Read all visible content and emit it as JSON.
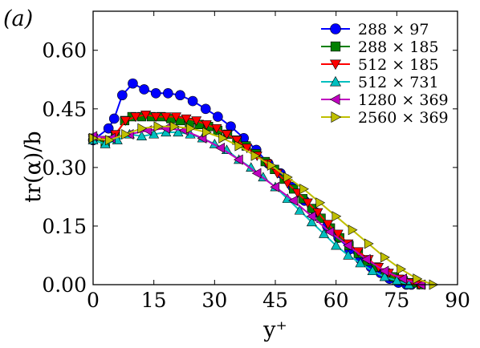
{
  "chart_data": {
    "type": "line",
    "panel_label": "(a)",
    "xlabel": "y⁺",
    "ylabel": "tr(α)/b",
    "xlim": [
      0,
      90
    ],
    "ylim": [
      0,
      0.7
    ],
    "xticks": [
      0,
      15,
      30,
      45,
      60,
      75,
      90
    ],
    "yticks": [
      0.0,
      0.15,
      0.3,
      0.45,
      0.6
    ],
    "xtick_labels": [
      "0",
      "15",
      "30",
      "45",
      "60",
      "75",
      "90"
    ],
    "ytick_labels": [
      "0.00",
      "0.15",
      "0.30",
      "0.45",
      "0.60"
    ],
    "grid": false,
    "legend_position": "top-right",
    "series": [
      {
        "name": "288 × 97",
        "color": "#0000ff",
        "marker": "circle",
        "x": [
          0,
          3.8,
          5.2,
          7.2,
          9.8,
          12.6,
          15.5,
          18.5,
          21.5,
          24.6,
          27.8,
          30.8,
          34,
          37.2,
          40.3,
          43.3,
          46.3,
          49.3,
          52.2,
          55,
          57.8,
          60.6,
          63.3,
          66,
          68.6,
          71,
          73.2,
          75.4,
          77.4,
          78.6
        ],
        "y": [
          0.37,
          0.4,
          0.425,
          0.485,
          0.515,
          0.5,
          0.49,
          0.49,
          0.485,
          0.47,
          0.45,
          0.43,
          0.405,
          0.375,
          0.345,
          0.31,
          0.285,
          0.25,
          0.215,
          0.185,
          0.15,
          0.12,
          0.09,
          0.065,
          0.045,
          0.03,
          0.015,
          0.005,
          0.0,
          0.0
        ]
      },
      {
        "name": "288 × 185",
        "color": "#008000",
        "marker": "square",
        "x": [
          0,
          3,
          5.5,
          7.8,
          9.6,
          12,
          14.4,
          16.8,
          19.2,
          21.5,
          23.8,
          26.2,
          28.5,
          30.8,
          33.2,
          35.5,
          37.8,
          40.2,
          42.5,
          44.8,
          47.2,
          49.5,
          51.8,
          54,
          56.3,
          58.6,
          60.9,
          63.2,
          65.5,
          67.7,
          69.9,
          72.2,
          74.4,
          76.6,
          78.8,
          81
        ],
        "y": [
          0.375,
          0.365,
          0.38,
          0.42,
          0.43,
          0.43,
          0.43,
          0.43,
          0.425,
          0.42,
          0.415,
          0.41,
          0.405,
          0.395,
          0.385,
          0.37,
          0.355,
          0.335,
          0.315,
          0.295,
          0.27,
          0.245,
          0.22,
          0.195,
          0.17,
          0.145,
          0.12,
          0.1,
          0.08,
          0.06,
          0.045,
          0.03,
          0.02,
          0.01,
          0.005,
          0.0
        ]
      },
      {
        "name": "512 × 185",
        "color": "#ff0000",
        "marker": "triangle-down",
        "x": [
          0,
          3,
          5.5,
          8,
          10.5,
          13,
          15.5,
          18,
          20.5,
          23,
          25.5,
          28,
          30.5,
          33,
          35.5,
          38,
          40.5,
          43,
          45.5,
          48,
          50.5,
          53,
          55.5,
          58,
          60.5,
          63,
          65.5,
          68,
          70.5,
          73,
          75.5,
          78,
          80.5
        ],
        "y": [
          0.375,
          0.37,
          0.385,
          0.42,
          0.43,
          0.435,
          0.43,
          0.43,
          0.43,
          0.425,
          0.42,
          0.41,
          0.4,
          0.385,
          0.37,
          0.35,
          0.33,
          0.31,
          0.285,
          0.26,
          0.235,
          0.21,
          0.185,
          0.155,
          0.13,
          0.105,
          0.085,
          0.065,
          0.045,
          0.03,
          0.015,
          0.005,
          0.0
        ]
      },
      {
        "name": "512 × 731",
        "color": "#00bfbf",
        "marker": "triangle-up",
        "x": [
          0,
          3,
          6,
          9,
          12,
          15,
          18,
          21,
          24,
          27,
          30,
          33,
          36,
          39,
          42,
          45,
          48,
          51,
          54,
          57,
          60,
          63,
          66,
          69,
          72,
          75,
          78
        ],
        "y": [
          0.37,
          0.36,
          0.37,
          0.385,
          0.38,
          0.385,
          0.39,
          0.39,
          0.385,
          0.375,
          0.36,
          0.345,
          0.32,
          0.3,
          0.275,
          0.25,
          0.22,
          0.19,
          0.16,
          0.13,
          0.1,
          0.075,
          0.055,
          0.035,
          0.02,
          0.01,
          0.0
        ]
      },
      {
        "name": "1280 × 369",
        "color": "#bf00bf",
        "marker": "triangle-left",
        "x": [
          0,
          4.5,
          9,
          13.5,
          18,
          22.5,
          27,
          31.5,
          36,
          40.5,
          45,
          49.5,
          54,
          58.5,
          63,
          67.5,
          72,
          76.5,
          81
        ],
        "y": [
          0.38,
          0.375,
          0.385,
          0.395,
          0.4,
          0.395,
          0.375,
          0.35,
          0.32,
          0.285,
          0.25,
          0.215,
          0.175,
          0.135,
          0.1,
          0.065,
          0.035,
          0.015,
          0.0
        ]
      },
      {
        "name": "2560 × 369",
        "color": "#bfbf00",
        "marker": "triangle-right",
        "x": [
          0,
          4,
          8,
          12,
          16,
          20,
          24,
          28,
          32,
          36,
          40,
          44,
          48,
          52,
          56,
          60,
          64,
          68,
          72,
          76,
          80,
          84
        ],
        "y": [
          0.375,
          0.37,
          0.385,
          0.4,
          0.405,
          0.405,
          0.4,
          0.39,
          0.375,
          0.355,
          0.33,
          0.305,
          0.275,
          0.245,
          0.21,
          0.175,
          0.14,
          0.105,
          0.07,
          0.04,
          0.015,
          0.0
        ]
      }
    ]
  }
}
